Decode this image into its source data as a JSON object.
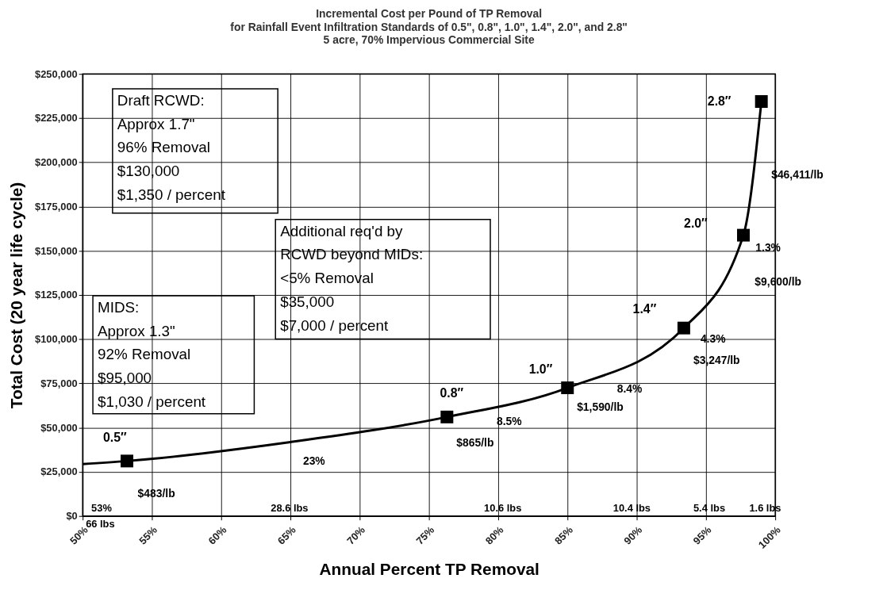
{
  "chart_data": {
    "type": "line",
    "title": "Incremental Cost per Pound of TP Removal",
    "subtitle": "for Rainfall Event Infiltration Standards of 0.5\", 0.8\", 1.0\", 1.4\", 2.0\", and 2.8\"\n5 acre, 70% Impervious Commercial Site",
    "xlabel": "Annual Percent TP Removal",
    "ylabel": "Total Cost (20 year life cycle)",
    "xlim": [
      50,
      100
    ],
    "ylim": [
      0,
      250000
    ],
    "xticks": [
      {
        "value": 50,
        "label": "50%"
      },
      {
        "value": 55,
        "label": "55%"
      },
      {
        "value": 60,
        "label": "60%"
      },
      {
        "value": 65,
        "label": "65%"
      },
      {
        "value": 70,
        "label": "70%"
      },
      {
        "value": 75,
        "label": "75%"
      },
      {
        "value": 80,
        "label": "80%"
      },
      {
        "value": 85,
        "label": "85%"
      },
      {
        "value": 90,
        "label": "90%"
      },
      {
        "value": 95,
        "label": "95%"
      },
      {
        "value": 100,
        "label": "100%"
      }
    ],
    "yticks": [
      {
        "value": 0,
        "label": "$0"
      },
      {
        "value": 25000,
        "label": "$25,000"
      },
      {
        "value": 50000,
        "label": "$50,000"
      },
      {
        "value": 75000,
        "label": "$75,000"
      },
      {
        "value": 100000,
        "label": "$100,000"
      },
      {
        "value": 125000,
        "label": "$125,000"
      },
      {
        "value": 150000,
        "label": "$150,000"
      },
      {
        "value": 175000,
        "label": "$175,000"
      },
      {
        "value": 200000,
        "label": "$200,000"
      },
      {
        "value": 225000,
        "label": "$225,000"
      },
      {
        "value": 250000,
        "label": "$250,000"
      }
    ],
    "grid": true,
    "line_style": "solid",
    "series": [
      {
        "marker": "none",
        "color": "#000000",
        "x": [
          50,
          53.2,
          65,
          76.3,
          85.0,
          93.4,
          97.7,
          99.0
        ],
        "values": [
          29400,
          31100,
          41800,
          56000,
          72500,
          106300,
          158800,
          234400
        ]
      },
      {
        "type": "scatter",
        "marker": "square",
        "color": "#000000",
        "x": [
          53.2,
          76.3,
          85.0,
          93.4,
          97.7,
          99.0
        ],
        "values": [
          31100,
          56000,
          72500,
          106300,
          158800,
          234400
        ]
      }
    ],
    "annotations": [
      "Draft RCWD:\nApprox 1.7\"\n96% Removal\n$130,000\n$1,350 / percent",
      "Additional req'd by\nRCWD beyond MIDs:\n<5% Removal\n$35,000\n$7,000 / percent",
      "MIDS:\nApprox 1.3\"\n92% Removal\n$95,000\n$1,030 / percent",
      "0.5″",
      "0.8″",
      "1.0″",
      "1.4″",
      "2.0″",
      "2.8″",
      "$46,411/lb",
      "1.3%",
      "$9,600/lb",
      "4.3%",
      "$3,247/lb",
      "8.4%",
      "$1,590/lb",
      "8.5%",
      "$865/lb",
      "23%",
      "$483/lb",
      "53%",
      "66 lbs",
      "28.6 lbs",
      "10.6 lbs",
      "10.4 lbs",
      "5.4 lbs",
      "1.6 lbs"
    ]
  }
}
